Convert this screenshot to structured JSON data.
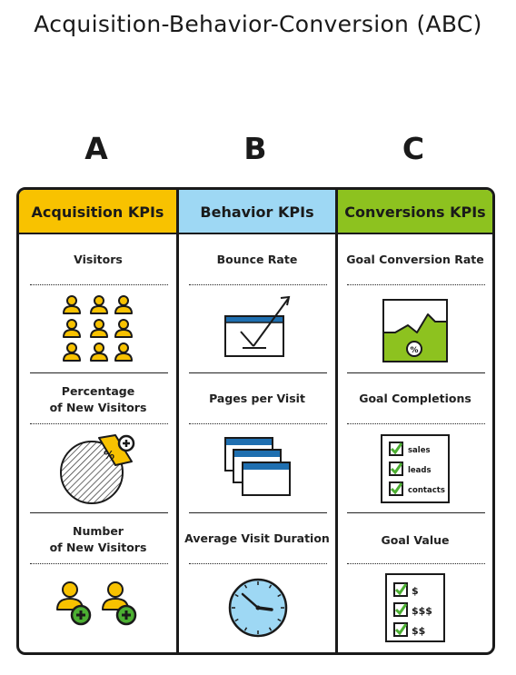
{
  "title": "Acquisition-Behavior-Conversion (ABC)",
  "columns": [
    {
      "letter": "A",
      "header": "Acquisition KPIs",
      "header_color": "#f8c200",
      "metrics": [
        "Visitors",
        "Percentage\nof New Visitors",
        "Number\nof New Visitors"
      ]
    },
    {
      "letter": "B",
      "header": "Behavior KPIs",
      "header_color": "#9ed8f4",
      "metrics": [
        "Bounce Rate",
        "Pages per Visit",
        "Average Visit Duration"
      ]
    },
    {
      "letter": "C",
      "header": "Conversions KPIs",
      "header_color": "#8dc21f",
      "metrics": [
        "Goal Conversion Rate",
        "Goal Completions",
        "Goal Value"
      ]
    }
  ],
  "icons": {
    "percent_symbol": "%",
    "checklist_items": [
      "sales",
      "leads",
      "contacts"
    ],
    "value_items": [
      "$",
      "$$$",
      "$$"
    ]
  },
  "colors": {
    "yellow": "#f8c200",
    "blue": "#9ed8f4",
    "green": "#8dc21f",
    "dark_blue": "#1f6fb0",
    "plus_green": "#4caf32"
  }
}
